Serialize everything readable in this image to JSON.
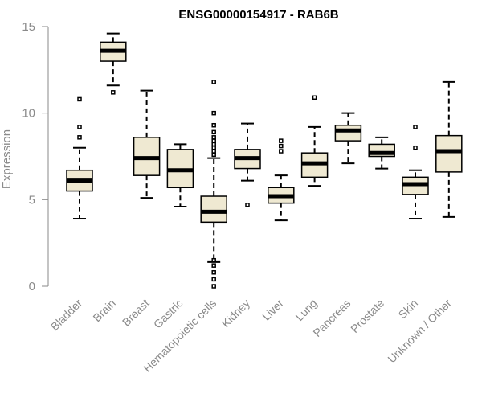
{
  "chart_data": {
    "type": "boxplot",
    "title": "ENSG00000154917 - RAB6B",
    "xlabel": "",
    "ylabel": "Expression",
    "ylim": [
      0,
      15
    ],
    "yticks": [
      0,
      5,
      10,
      15
    ],
    "colors": {
      "box_fill": "#efe9d2",
      "outline": "#000000",
      "axis": "#8a8a8a"
    },
    "categories": [
      "Bladder",
      "Brain",
      "Breast",
      "Gastric",
      "Hematopoietic cells",
      "Kidney",
      "Liver",
      "Lung",
      "Pancreas",
      "Prostate",
      "Skin",
      "Unknown / Other"
    ],
    "boxes": [
      {
        "name": "Bladder",
        "whisker_low": 3.9,
        "q1": 5.5,
        "median": 6.1,
        "q3": 6.7,
        "whisker_high": 8.0,
        "outliers": [
          8.6,
          9.2,
          10.8
        ]
      },
      {
        "name": "Brain",
        "whisker_low": 11.6,
        "q1": 13.0,
        "median": 13.6,
        "q3": 14.1,
        "whisker_high": 14.6,
        "outliers": [
          11.2
        ]
      },
      {
        "name": "Breast",
        "whisker_low": 5.1,
        "q1": 6.4,
        "median": 7.4,
        "q3": 8.6,
        "whisker_high": 11.3,
        "outliers": []
      },
      {
        "name": "Gastric",
        "whisker_low": 4.6,
        "q1": 5.7,
        "median": 6.7,
        "q3": 7.9,
        "whisker_high": 8.2,
        "outliers": []
      },
      {
        "name": "Hematopoietic cells",
        "whisker_low": 1.4,
        "q1": 3.7,
        "median": 4.3,
        "q3": 5.2,
        "whisker_high": 7.4,
        "outliers": [
          0.0,
          0.4,
          0.8,
          1.2,
          1.5,
          7.6,
          7.8,
          8.0,
          8.2,
          8.4,
          8.6,
          8.9,
          9.3,
          10.0,
          11.8
        ]
      },
      {
        "name": "Kidney",
        "whisker_low": 6.1,
        "q1": 6.8,
        "median": 7.4,
        "q3": 7.9,
        "whisker_high": 9.4,
        "outliers": [
          4.7
        ]
      },
      {
        "name": "Liver",
        "whisker_low": 3.8,
        "q1": 4.8,
        "median": 5.2,
        "q3": 5.7,
        "whisker_high": 6.4,
        "outliers": [
          7.8,
          8.1,
          8.4
        ]
      },
      {
        "name": "Lung",
        "whisker_low": 5.8,
        "q1": 6.3,
        "median": 7.1,
        "q3": 7.7,
        "whisker_high": 9.2,
        "outliers": [
          10.9
        ]
      },
      {
        "name": "Pancreas",
        "whisker_low": 7.1,
        "q1": 8.4,
        "median": 9.0,
        "q3": 9.3,
        "whisker_high": 10.0,
        "outliers": []
      },
      {
        "name": "Prostate",
        "whisker_low": 6.8,
        "q1": 7.5,
        "median": 7.7,
        "q3": 8.2,
        "whisker_high": 8.6,
        "outliers": []
      },
      {
        "name": "Skin",
        "whisker_low": 3.9,
        "q1": 5.3,
        "median": 5.9,
        "q3": 6.3,
        "whisker_high": 6.7,
        "outliers": [
          8.0,
          9.2
        ]
      },
      {
        "name": "Unknown / Other",
        "whisker_low": 4.0,
        "q1": 6.6,
        "median": 7.8,
        "q3": 8.7,
        "whisker_high": 11.8,
        "outliers": []
      }
    ]
  }
}
